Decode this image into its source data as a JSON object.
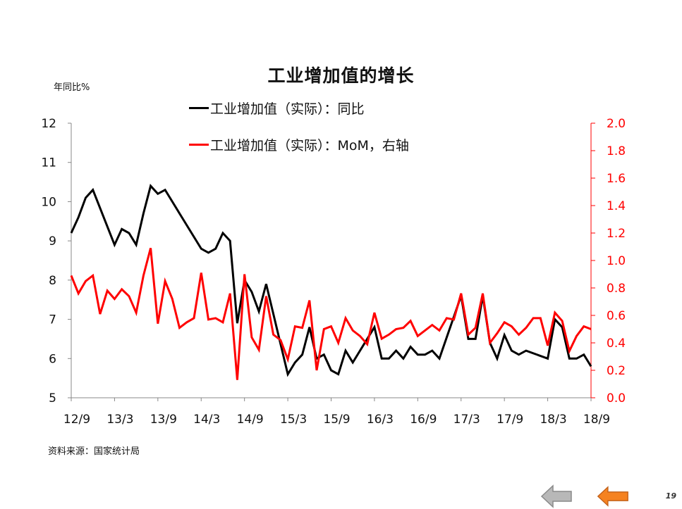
{
  "chart_data": {
    "type": "line",
    "title": "工业增加值的增长",
    "ylabel": "年同比%",
    "x_tick_labels": [
      "12/9",
      "13/3",
      "13/9",
      "14/3",
      "14/9",
      "15/3",
      "15/9",
      "16/3",
      "16/9",
      "17/3",
      "17/9",
      "18/3",
      "18/9"
    ],
    "y_left": {
      "range": [
        5,
        12
      ],
      "ticks": [
        "12",
        "11",
        "10",
        "9",
        "8",
        "7",
        "6",
        "5"
      ]
    },
    "y_right": {
      "range": [
        0.0,
        2.0
      ],
      "ticks": [
        "2.0",
        "1.8",
        "1.6",
        "1.4",
        "1.2",
        "1.0",
        "0.8",
        "0.6",
        "0.4",
        "0.2",
        "0.0"
      ]
    },
    "x_range": [
      "2012-09",
      "2018-09"
    ],
    "series": [
      {
        "name": "工业增加值（实际）：同比",
        "axis": "left",
        "color": "#000000",
        "x": [
          "2012-09",
          "2012-10",
          "2012-11",
          "2012-12",
          "2013-03",
          "2013-04",
          "2013-05",
          "2013-06",
          "2013-07",
          "2013-08",
          "2013-09",
          "2013-10",
          "2013-11",
          "2013-12",
          "2014-03",
          "2014-04",
          "2014-05",
          "2014-06",
          "2014-07",
          "2014-08",
          "2014-09",
          "2014-10",
          "2014-11",
          "2014-12",
          "2015-03",
          "2015-04",
          "2015-05",
          "2015-06",
          "2015-07",
          "2015-08",
          "2015-09",
          "2015-10",
          "2015-11",
          "2015-12",
          "2016-03",
          "2016-04",
          "2016-05",
          "2016-06",
          "2016-07",
          "2016-08",
          "2016-09",
          "2016-10",
          "2016-11",
          "2016-12",
          "2017-03",
          "2017-04",
          "2017-05",
          "2017-06",
          "2017-07",
          "2017-08",
          "2017-09",
          "2017-10",
          "2017-11",
          "2017-12",
          "2018-03",
          "2018-04",
          "2018-05",
          "2018-06",
          "2018-07",
          "2018-08",
          "2018-09"
        ],
        "values": [
          9.2,
          9.6,
          10.1,
          10.3,
          8.9,
          9.3,
          9.2,
          8.9,
          9.7,
          10.4,
          10.2,
          10.3,
          10.0,
          9.7,
          8.8,
          8.7,
          8.8,
          9.2,
          9.0,
          6.9,
          8.0,
          7.7,
          7.2,
          7.9,
          5.6,
          5.9,
          6.1,
          6.8,
          6.0,
          6.1,
          5.7,
          5.6,
          6.2,
          5.9,
          6.8,
          6.0,
          6.0,
          6.2,
          6.0,
          6.3,
          6.1,
          6.1,
          6.2,
          6.0,
          7.6,
          6.5,
          6.5,
          7.6,
          6.4,
          6.0,
          6.6,
          6.2,
          6.1,
          6.2,
          6.0,
          7.0,
          6.8,
          6.0,
          6.0,
          6.1,
          5.8
        ]
      },
      {
        "name": "工业增加值（实际）：MoM，右轴",
        "axis": "right",
        "color": "#ff0000",
        "x": [
          "2012-09",
          "2012-10",
          "2012-11",
          "2012-12",
          "2013-01",
          "2013-02",
          "2013-03",
          "2013-04",
          "2013-05",
          "2013-06",
          "2013-07",
          "2013-08",
          "2013-09",
          "2013-10",
          "2013-11",
          "2013-12",
          "2014-01",
          "2014-02",
          "2014-03",
          "2014-04",
          "2014-05",
          "2014-06",
          "2014-07",
          "2014-08",
          "2014-09",
          "2014-10",
          "2014-11",
          "2014-12",
          "2015-01",
          "2015-02",
          "2015-03",
          "2015-04",
          "2015-05",
          "2015-06",
          "2015-07",
          "2015-08",
          "2015-09",
          "2015-10",
          "2015-11",
          "2015-12",
          "2016-01",
          "2016-02",
          "2016-03",
          "2016-04",
          "2016-05",
          "2016-06",
          "2016-07",
          "2016-08",
          "2016-09",
          "2016-10",
          "2016-11",
          "2016-12",
          "2017-01",
          "2017-02",
          "2017-03",
          "2017-04",
          "2017-05",
          "2017-06",
          "2017-07",
          "2017-08",
          "2017-09",
          "2017-10",
          "2017-11",
          "2017-12",
          "2018-01",
          "2018-02",
          "2018-03",
          "2018-04",
          "2018-05",
          "2018-06",
          "2018-07",
          "2018-08",
          "2018-09"
        ],
        "values": [
          0.89,
          0.76,
          0.85,
          0.89,
          0.61,
          0.78,
          0.72,
          0.79,
          0.74,
          0.62,
          0.89,
          1.09,
          0.54,
          0.85,
          0.72,
          0.51,
          0.55,
          0.58,
          0.91,
          0.57,
          0.58,
          0.55,
          0.76,
          0.13,
          0.9,
          0.44,
          0.35,
          0.74,
          0.46,
          0.42,
          0.28,
          0.52,
          0.51,
          0.71,
          0.2,
          0.5,
          0.52,
          0.4,
          0.58,
          0.49,
          0.45,
          0.39,
          0.62,
          0.43,
          0.46,
          0.5,
          0.51,
          0.56,
          0.45,
          0.49,
          0.53,
          0.49,
          0.58,
          0.57,
          0.76,
          0.46,
          0.51,
          0.76,
          0.4,
          0.47,
          0.55,
          0.52,
          0.46,
          0.51,
          0.58,
          0.58,
          0.38,
          0.62,
          0.56,
          0.34,
          0.45,
          0.52,
          0.5
        ]
      }
    ],
    "legend": [
      "工业增加值（实际）：同比",
      "工业增加值（实际）：MoM，右轴"
    ],
    "legend_position": "top-center",
    "grid": false
  },
  "footer": {
    "source": "资料来源：国家统计局",
    "page_number": "19"
  },
  "colors": {
    "left_axis": "#000000",
    "right_axis": "#ff0000",
    "nav_prev": "#b0b0b0",
    "nav_next": "#f58220"
  }
}
